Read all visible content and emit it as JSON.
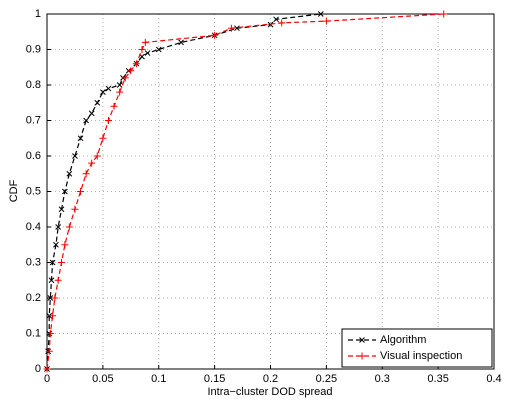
{
  "chart_data": {
    "type": "line",
    "xlabel": "Intra−cluster DOD spread",
    "ylabel": "CDF",
    "xlim": [
      0,
      0.4
    ],
    "ylim": [
      0,
      1
    ],
    "xticks": [
      0,
      0.05,
      0.1,
      0.15,
      0.2,
      0.25,
      0.3,
      0.35,
      0.4
    ],
    "yticks": [
      0,
      0.1,
      0.2,
      0.3,
      0.4,
      0.5,
      0.6,
      0.7,
      0.8,
      0.9,
      1
    ],
    "grid": true,
    "legend": "lower right",
    "series": [
      {
        "name": "Algorithm",
        "color": "#000000",
        "marker": "x",
        "x": [
          0,
          0.001,
          0.002,
          0.002,
          0.003,
          0.004,
          0.005,
          0.008,
          0.01,
          0.013,
          0.016,
          0.02,
          0.025,
          0.03,
          0.035,
          0.04,
          0.045,
          0.05,
          0.055,
          0.065,
          0.068,
          0.073,
          0.08,
          0.085,
          0.09,
          0.1,
          0.12,
          0.15,
          0.17,
          0.2,
          0.205,
          0.245
        ],
        "values": [
          0,
          0.05,
          0.1,
          0.15,
          0.2,
          0.25,
          0.3,
          0.35,
          0.4,
          0.45,
          0.5,
          0.55,
          0.6,
          0.65,
          0.7,
          0.72,
          0.75,
          0.78,
          0.79,
          0.8,
          0.82,
          0.84,
          0.86,
          0.88,
          0.89,
          0.9,
          0.92,
          0.94,
          0.96,
          0.97,
          0.985,
          1
        ]
      },
      {
        "name": "Visual inspection",
        "color": "#ff0000",
        "marker": "+",
        "x": [
          0,
          0.002,
          0.003,
          0.005,
          0.007,
          0.01,
          0.013,
          0.016,
          0.02,
          0.025,
          0.03,
          0.035,
          0.04,
          0.045,
          0.05,
          0.055,
          0.06,
          0.065,
          0.07,
          0.075,
          0.08,
          0.085,
          0.088,
          0.15,
          0.165,
          0.21,
          0.25,
          0.355
        ],
        "values": [
          0,
          0.05,
          0.1,
          0.15,
          0.2,
          0.25,
          0.3,
          0.35,
          0.4,
          0.45,
          0.5,
          0.55,
          0.58,
          0.6,
          0.65,
          0.7,
          0.74,
          0.78,
          0.82,
          0.84,
          0.86,
          0.9,
          0.92,
          0.94,
          0.96,
          0.975,
          0.98,
          1
        ]
      }
    ]
  }
}
